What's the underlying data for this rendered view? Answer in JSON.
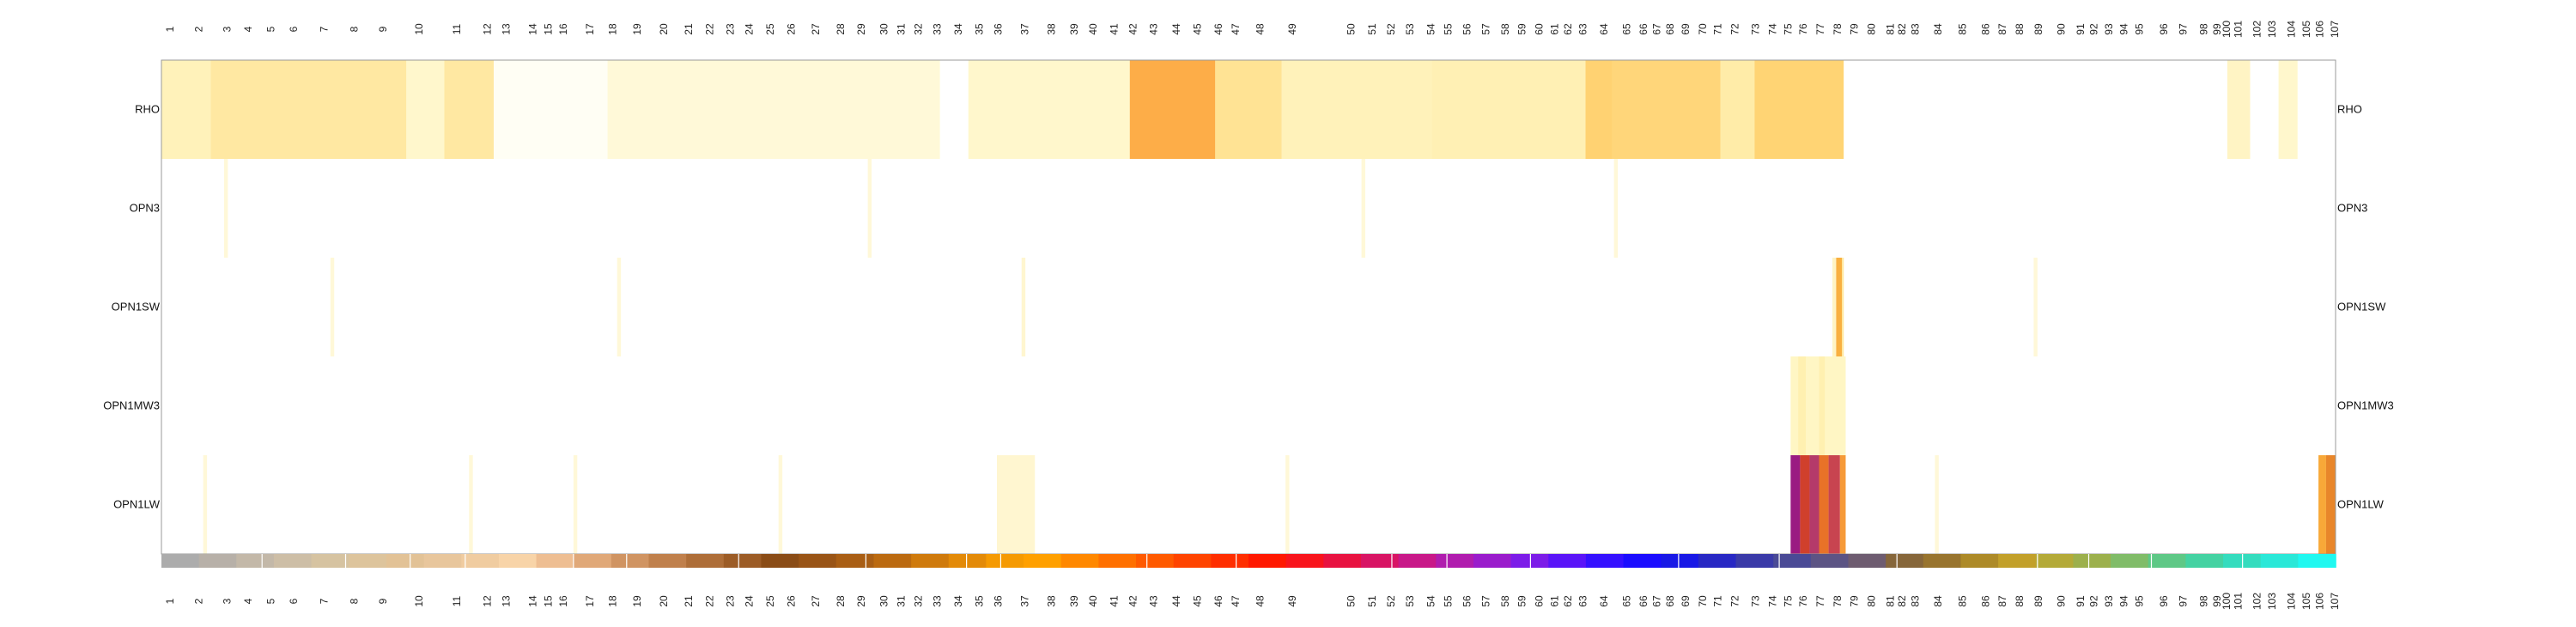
{
  "chart_data": {
    "type": "heatmap",
    "title": "",
    "xlabel": "",
    "ylabel": "",
    "rows": [
      "RHO",
      "OPN3",
      "OPN1SW",
      "OPN1MW3",
      "OPN1LW"
    ],
    "x_ticks": [
      "1",
      "2",
      "3",
      "4",
      "5",
      "6",
      "7",
      "8",
      "9",
      "10",
      "11",
      "12",
      "13",
      "14",
      "15",
      "16",
      "17",
      "18",
      "19",
      "20",
      "21",
      "22",
      "23",
      "24",
      "25",
      "26",
      "27",
      "28",
      "29",
      "30",
      "31",
      "32",
      "33",
      "34",
      "35",
      "36",
      "37",
      "38",
      "39",
      "40",
      "41",
      "42",
      "43",
      "44",
      "45",
      "46",
      "47",
      "48",
      "49",
      "50",
      "51",
      "52",
      "53",
      "54",
      "55",
      "56",
      "57",
      "58",
      "59",
      "60",
      "61",
      "62",
      "63",
      "64",
      "65",
      "66",
      "67",
      "68",
      "69",
      "70",
      "71",
      "72",
      "73",
      "74",
      "75",
      "76",
      "77",
      "78",
      "79",
      "80",
      "81",
      "82",
      "83",
      "84",
      "85",
      "86",
      "87",
      "88",
      "89",
      "90",
      "91",
      "92",
      "93",
      "94",
      "95",
      "96",
      "97",
      "98",
      "99",
      "100",
      "101",
      "102",
      "103",
      "104",
      "105",
      "106",
      "107"
    ],
    "x_tick_positions": [
      0.5,
      2.0,
      3.5,
      4.6,
      5.8,
      7.0,
      8.6,
      10.2,
      11.7,
      13.6,
      15.6,
      17.2,
      18.2,
      19.6,
      20.4,
      21.2,
      22.6,
      23.8,
      25.1,
      26.5,
      27.8,
      28.9,
      30.0,
      31.0,
      32.1,
      33.2,
      34.5,
      35.8,
      36.9,
      38.1,
      39.0,
      39.9,
      40.9,
      42.0,
      43.1,
      44.1,
      45.5,
      46.9,
      48.1,
      49.1,
      50.2,
      51.2,
      52.3,
      53.5,
      54.6,
      55.7,
      56.6,
      57.9,
      59.6,
      62.7,
      63.8,
      64.8,
      65.8,
      66.9,
      67.8,
      68.8,
      69.8,
      70.8,
      71.7,
      72.6,
      73.4,
      74.1,
      74.9,
      76.0,
      77.2,
      78.1,
      78.8,
      79.5,
      80.3,
      81.2,
      82.0,
      82.9,
      84.0,
      84.9,
      85.7,
      86.5,
      87.4,
      88.3,
      89.2,
      90.1,
      91.1,
      91.7,
      92.4,
      93.6,
      94.9,
      96.1,
      97.0,
      97.9,
      98.9,
      100.1,
      101.1,
      101.8,
      102.6,
      103.4,
      104.2,
      105.5,
      106.5,
      107.6,
      108.3,
      108.8,
      109.4,
      110.4,
      111.2,
      112.2,
      113.0,
      113.7,
      114.5
    ],
    "column_span": 114.5,
    "colorbar_colors": [
      "#acacac",
      "#b7b0a8",
      "#c3b8a8",
      "#cdbea6",
      "#d6c3a1",
      "#ddc49c",
      "#e2c296",
      "#e8c69c",
      "#f0cca0",
      "#f8d4a8",
      "#eebe92",
      "#e0a878",
      "#d09462",
      "#c0804c",
      "#ae6e38",
      "#9c5c26",
      "#8a4c16",
      "#995416",
      "#a95e14",
      "#bb6a10",
      "#cf7a0c",
      "#e38a08",
      "#f59a02",
      "#ffa000",
      "#ff8800",
      "#ff7000",
      "#ff5a00",
      "#ff4400",
      "#ff2e00",
      "#ff1800",
      "#f8141c",
      "#e81240",
      "#d81464",
      "#c81888",
      "#b01cae",
      "#9a1ccc",
      "#7c1ce8",
      "#5a14f8",
      "#3410ff",
      "#1a0cff",
      "#1818e6",
      "#2828c4",
      "#3a3aa8",
      "#4a4a96",
      "#5c5484",
      "#6e5c70",
      "#86663a",
      "#98742e",
      "#ad8a28",
      "#c2a02a",
      "#b4aa38",
      "#9cb04c",
      "#80bc68",
      "#5ec886",
      "#44d2a2",
      "#34dcbe",
      "#2ae8d8",
      "#20f8f0"
    ],
    "colorbar_separators": [
      5.3,
      9.7,
      13.1,
      16.0,
      21.7,
      24.5,
      30.4,
      37.1,
      42.4,
      44.2,
      51.9,
      56.6,
      64.8,
      67.7,
      72.1,
      79.9,
      85.2,
      91.4,
      98.8,
      101.5,
      104.8,
      109.6
    ],
    "heat": {
      "RHO": {
        "base": "#fffcd8",
        "segments": [
          {
            "x0": 0.0,
            "x1": 2.6,
            "color": "#fff2ba"
          },
          {
            "x0": 2.6,
            "x1": 12.9,
            "color": "#ffe8a2"
          },
          {
            "x0": 12.9,
            "x1": 14.9,
            "color": "#fff7cc"
          },
          {
            "x0": 14.9,
            "x1": 17.5,
            "color": "#ffe8a2"
          },
          {
            "x0": 17.5,
            "x1": 23.5,
            "color": "#fffef4"
          },
          {
            "x0": 23.5,
            "x1": 41.0,
            "color": "#fff9d8"
          },
          {
            "x0": 41.0,
            "x1": 42.5,
            "color": "#ffffff"
          },
          {
            "x0": 42.5,
            "x1": 51.0,
            "color": "#fff7cc"
          },
          {
            "x0": 51.0,
            "x1": 55.5,
            "color": "#fdad48"
          },
          {
            "x0": 55.5,
            "x1": 59.0,
            "color": "#ffe394"
          },
          {
            "x0": 59.0,
            "x1": 66.9,
            "color": "#fff2ba"
          },
          {
            "x0": 66.9,
            "x1": 75.0,
            "color": "#fff0b4"
          },
          {
            "x0": 75.0,
            "x1": 76.4,
            "color": "#ffd272"
          },
          {
            "x0": 76.4,
            "x1": 82.1,
            "color": "#ffd67a"
          },
          {
            "x0": 82.1,
            "x1": 83.9,
            "color": "#ffeca8"
          },
          {
            "x0": 83.9,
            "x1": 88.6,
            "color": "#ffd474"
          },
          {
            "x0": 88.6,
            "x1": 108.8,
            "color": "#ffffff"
          },
          {
            "x0": 108.8,
            "x1": 110.0,
            "color": "#fff4c4"
          },
          {
            "x0": 110.0,
            "x1": 111.5,
            "color": "#ffffff"
          },
          {
            "x0": 111.5,
            "x1": 112.5,
            "color": "#fff7cc"
          },
          {
            "x0": 112.5,
            "x1": 114.5,
            "color": "#ffffff"
          }
        ]
      },
      "OPN3": {
        "base": "#ffffff",
        "segments": [
          {
            "x0": 3.3,
            "x1": 3.5,
            "color": "#fff8d8"
          },
          {
            "x0": 37.2,
            "x1": 37.4,
            "color": "#fff8d8"
          },
          {
            "x0": 63.2,
            "x1": 63.4,
            "color": "#fff8d8"
          },
          {
            "x0": 76.5,
            "x1": 76.7,
            "color": "#fff8d8"
          }
        ]
      },
      "OPN1SW": {
        "base": "#ffffff",
        "segments": [
          {
            "x0": 8.9,
            "x1": 9.1,
            "color": "#fff8d8"
          },
          {
            "x0": 24.0,
            "x1": 24.2,
            "color": "#fff8d8"
          },
          {
            "x0": 45.3,
            "x1": 45.5,
            "color": "#fff6d0"
          },
          {
            "x0": 88.0,
            "x1": 88.2,
            "color": "#fff4c4"
          },
          {
            "x0": 88.2,
            "x1": 88.5,
            "color": "#f9b040"
          },
          {
            "x0": 88.5,
            "x1": 88.6,
            "color": "#ffe8a0"
          },
          {
            "x0": 98.6,
            "x1": 98.8,
            "color": "#fff8d8"
          }
        ]
      },
      "OPN1MW3": {
        "base": "#ffffff",
        "segments": [
          {
            "x0": 85.8,
            "x1": 88.7,
            "color": "#fff6c4"
          },
          {
            "x0": 86.2,
            "x1": 86.6,
            "color": "#fff0b0"
          },
          {
            "x0": 87.3,
            "x1": 87.6,
            "color": "#fff0b0"
          }
        ]
      },
      "OPN1LW": {
        "base": "#ffffff",
        "segments": [
          {
            "x0": 2.2,
            "x1": 2.4,
            "color": "#fff8d8"
          },
          {
            "x0": 16.2,
            "x1": 16.4,
            "color": "#fff8d8"
          },
          {
            "x0": 21.7,
            "x1": 21.9,
            "color": "#fff8d8"
          },
          {
            "x0": 32.5,
            "x1": 32.7,
            "color": "#fff8d8"
          },
          {
            "x0": 44.0,
            "x1": 46.0,
            "color": "#fff6d0"
          },
          {
            "x0": 59.2,
            "x1": 59.4,
            "color": "#fff8d8"
          },
          {
            "x0": 85.8,
            "x1": 86.3,
            "color": "#9a1a82"
          },
          {
            "x0": 86.3,
            "x1": 86.8,
            "color": "#d0402c"
          },
          {
            "x0": 86.8,
            "x1": 87.3,
            "color": "#b43a6a"
          },
          {
            "x0": 87.3,
            "x1": 87.8,
            "color": "#e87228"
          },
          {
            "x0": 87.8,
            "x1": 88.4,
            "color": "#c84450"
          },
          {
            "x0": 88.4,
            "x1": 88.7,
            "color": "#f69a38"
          },
          {
            "x0": 93.4,
            "x1": 93.6,
            "color": "#fff8d8"
          },
          {
            "x0": 113.6,
            "x1": 114.0,
            "color": "#f8a838"
          },
          {
            "x0": 114.0,
            "x1": 114.5,
            "color": "#e8862a"
          }
        ]
      }
    }
  }
}
